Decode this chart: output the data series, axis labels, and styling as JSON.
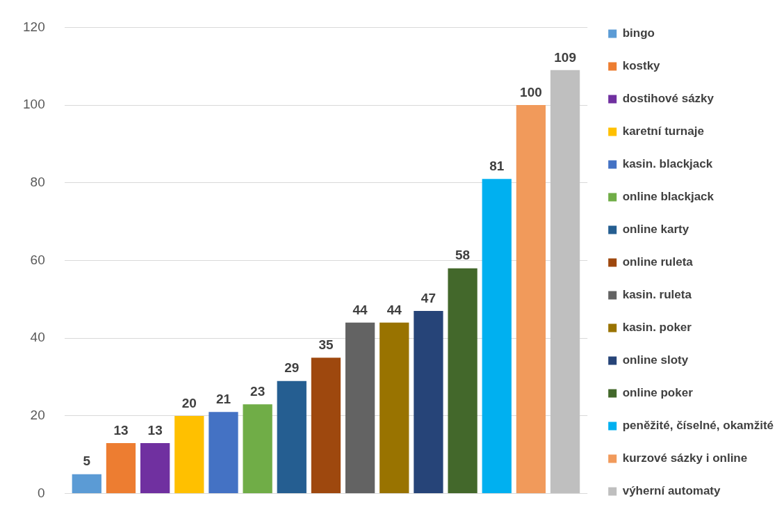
{
  "chart_data": {
    "type": "bar",
    "categories": [
      null
    ],
    "series": [
      {
        "name": "bingo",
        "color": "#5b9bd5",
        "values": [
          5
        ]
      },
      {
        "name": "kostky",
        "color": "#ed7d31",
        "values": [
          13
        ]
      },
      {
        "name": "dostihové sázky",
        "color": "#7030a0",
        "values": [
          13
        ]
      },
      {
        "name": "karetní turnaje",
        "color": "#ffc000",
        "values": [
          20
        ]
      },
      {
        "name": "kasin. blackjack",
        "color": "#4472c4",
        "values": [
          21
        ]
      },
      {
        "name": "online blackjack",
        "color": "#70ad47",
        "values": [
          23
        ]
      },
      {
        "name": "online karty",
        "color": "#255e91",
        "values": [
          29
        ]
      },
      {
        "name": "online ruleta",
        "color": "#9e480e",
        "values": [
          35
        ]
      },
      {
        "name": "kasin. ruleta",
        "color": "#636363",
        "values": [
          44
        ]
      },
      {
        "name": "kasin. poker",
        "color": "#997300",
        "values": [
          44
        ]
      },
      {
        "name": "online sloty",
        "color": "#264478",
        "values": [
          47
        ]
      },
      {
        "name": "online poker",
        "color": "#43682b",
        "values": [
          58
        ]
      },
      {
        "name": "peněžité, číselné, okamžité",
        "color": "#00b0f0",
        "values": [
          81
        ]
      },
      {
        "name": "kurzové sázky i online",
        "color": "#f19a5b",
        "values": [
          100
        ]
      },
      {
        "name": "výherní automaty",
        "color": "#bfbfbf",
        "values": [
          109
        ]
      }
    ],
    "ylim": [
      0,
      120
    ],
    "yticks": [
      0,
      20,
      40,
      60,
      80,
      100,
      120
    ],
    "grid": "y",
    "legend": "right",
    "data_labels": true
  }
}
